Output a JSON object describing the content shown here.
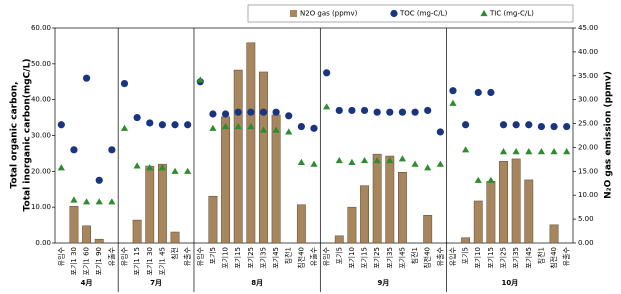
{
  "chart_data": {
    "type": "combo",
    "legend": "top",
    "y_label": [
      "Total organic carbon,",
      "Total inorganic carbon(mgC/L)"
    ],
    "y2_label": "N₂O gas emission (ppmv)",
    "groups": [
      {
        "label": "4月",
        "categories": [
          "유입수",
          "포기1 30",
          "포기1 60",
          "포기1 90",
          "유출수"
        ]
      },
      {
        "label": "7月",
        "categories": [
          "유입수",
          "포기1 15",
          "포기1 30",
          "포기1 45",
          "침전",
          "유출수"
        ]
      },
      {
        "label": "8月",
        "categories": [
          "유입수",
          "포기5",
          "포기10",
          "포기15",
          "포기25",
          "포기35",
          "포기45",
          "침전1",
          "침전40",
          "유출수"
        ]
      },
      {
        "label": "9月",
        "categories": [
          "유입수",
          "포기5",
          "포기10",
          "포기15",
          "포기25",
          "포기35",
          "포기45",
          "침전1",
          "침전40",
          "유출수"
        ]
      },
      {
        "label": "10月",
        "categories": [
          "유입수",
          "포기5",
          "포기10",
          "포기15",
          "포기25",
          "포기35",
          "포기45",
          "침전1",
          "침전40",
          "유출수"
        ]
      }
    ],
    "series": [
      {
        "name": "N2O gas (ppmv)",
        "type": "bar",
        "axis": "y2",
        "color": "#a7865e",
        "values": [
          null,
          7.7,
          3.6,
          0.8,
          null,
          null,
          4.8,
          16.1,
          16.5,
          2.3,
          null,
          null,
          9.8,
          26.4,
          36.2,
          41.9,
          35.8,
          26.8,
          null,
          8.0,
          null,
          null,
          1.5,
          7.5,
          12.0,
          18.6,
          18.2,
          14.8,
          null,
          5.8,
          null,
          null,
          1.1,
          8.8,
          12.9,
          17.1,
          17.6,
          13.2,
          null,
          3.8,
          null
        ]
      },
      {
        "name": "TOC (mg-C/L)",
        "type": "scatter",
        "marker": "circle",
        "color": "#1a3580",
        "values": [
          33.0,
          26.0,
          46.0,
          17.5,
          26.0,
          44.5,
          35.0,
          33.5,
          33.0,
          33.0,
          33.0,
          45.0,
          36.0,
          36.0,
          36.5,
          36.5,
          36.5,
          36.5,
          35.5,
          32.5,
          32.0,
          47.5,
          37.0,
          37.0,
          37.0,
          36.5,
          36.5,
          36.5,
          36.5,
          37.0,
          31.0,
          42.5,
          33.0,
          42.0,
          42.0,
          33.0,
          33.0,
          33.0,
          32.5,
          32.5,
          32.5
        ]
      },
      {
        "name": "TIC (mg-C/L)",
        "type": "scatter",
        "marker": "triangle",
        "color": "#2e8b2e",
        "values": [
          21.0,
          12.0,
          11.5,
          11.5,
          11.5,
          32.0,
          21.5,
          21.0,
          21.0,
          20.0,
          20.0,
          45.5,
          32.0,
          32.5,
          32.5,
          32.5,
          31.5,
          31.5,
          31.0,
          22.5,
          22.0,
          38.0,
          23.0,
          22.5,
          23.0,
          23.0,
          23.0,
          23.5,
          22.0,
          21.0,
          22.0,
          39.0,
          26.0,
          17.5,
          17.5,
          25.5,
          25.5,
          25.5,
          25.5,
          25.5,
          25.5
        ]
      }
    ],
    "ylim": [
      0,
      60
    ],
    "yticks": [
      {
        "value": 0,
        "label": "0.00"
      },
      {
        "value": 10,
        "label": "10.00"
      },
      {
        "value": 20,
        "label": "20.00"
      },
      {
        "value": 30,
        "label": "30.00"
      },
      {
        "value": 40,
        "label": "40.00"
      },
      {
        "value": 50,
        "label": "50.00"
      },
      {
        "value": 60,
        "label": "60.00"
      }
    ],
    "y2lim": [
      0,
      45
    ],
    "y2ticks": [
      {
        "value": 0,
        "label": "0.00"
      },
      {
        "value": 5,
        "label": "5.00"
      },
      {
        "value": 10,
        "label": "10.00"
      },
      {
        "value": 15,
        "label": "15.00"
      },
      {
        "value": 20,
        "label": "20.00"
      },
      {
        "value": 25,
        "label": "25.00"
      },
      {
        "value": 30,
        "label": "30.00"
      },
      {
        "value": 35,
        "label": "35.00"
      },
      {
        "value": 40,
        "label": "40.00"
      },
      {
        "value": 45,
        "label": "45.00"
      }
    ]
  }
}
